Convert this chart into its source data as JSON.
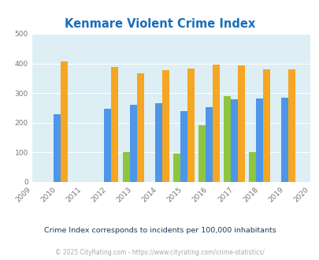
{
  "title": "Kenmare Violent Crime Index",
  "years": [
    2009,
    2010,
    2011,
    2012,
    2013,
    2014,
    2015,
    2016,
    2017,
    2018,
    2019,
    2020
  ],
  "bar_years": [
    2010,
    2012,
    2013,
    2014,
    2015,
    2016,
    2017,
    2018,
    2019
  ],
  "kenmare": [
    0,
    0,
    101,
    0,
    97,
    191,
    290,
    101,
    0
  ],
  "north_dakota": [
    228,
    248,
    261,
    265,
    240,
    252,
    280,
    281,
    284
  ],
  "national": [
    407,
    387,
    367,
    377,
    383,
    397,
    394,
    380,
    379
  ],
  "kenmare_color": "#8dc63f",
  "nd_color": "#4d96e8",
  "national_color": "#f5a623",
  "bg_color": "#ddeef5",
  "ylim": [
    0,
    500
  ],
  "yticks": [
    0,
    100,
    200,
    300,
    400,
    500
  ],
  "subtitle": "Crime Index corresponds to incidents per 100,000 inhabitants",
  "footer": "© 2025 CityRating.com - https://www.cityrating.com/crime-statistics/",
  "subtitle_color": "#1a3a5c",
  "footer_color": "#aaaaaa",
  "title_color": "#1a6fba",
  "grid_color": "#ffffff",
  "bar_width": 0.28
}
